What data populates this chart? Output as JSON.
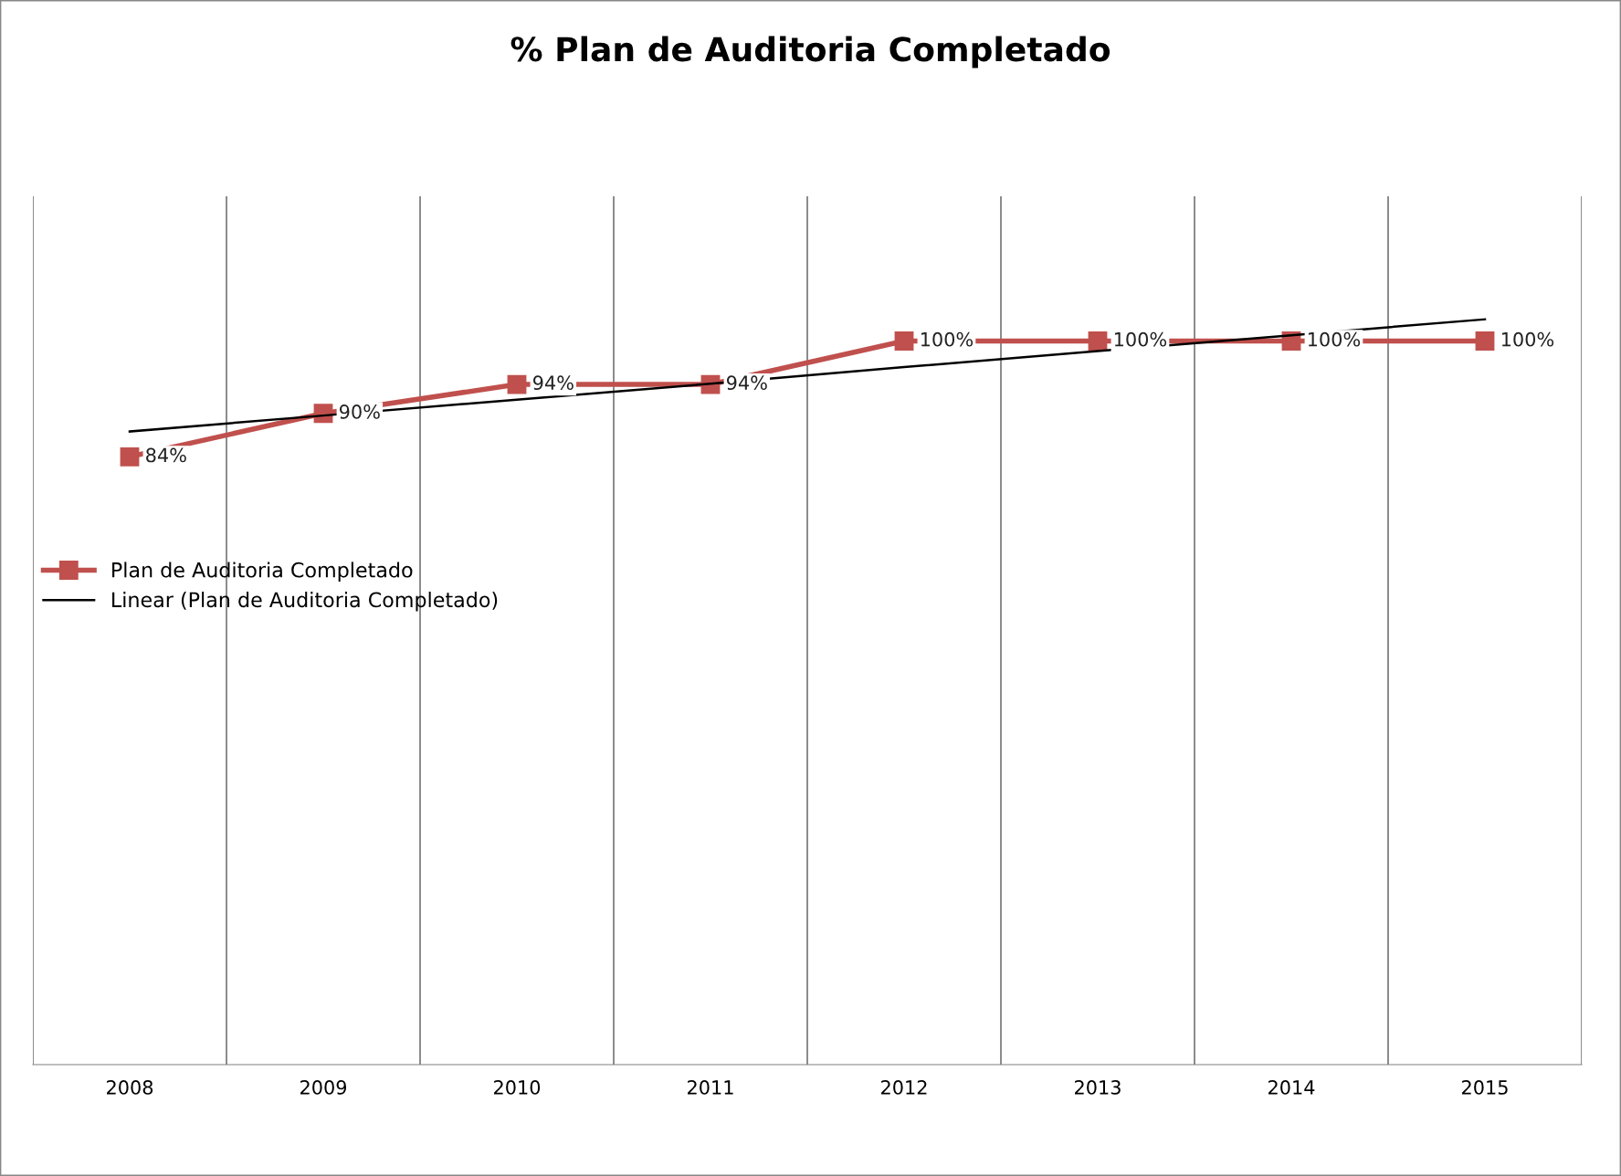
{
  "chart_data": {
    "type": "line",
    "title": "% Plan de Auditoria Completado",
    "categories": [
      "2008",
      "2009",
      "2010",
      "2011",
      "2012",
      "2013",
      "2014",
      "2015"
    ],
    "series": [
      {
        "name": "Plan de Auditoria Completado",
        "color": "#c0504d",
        "values": [
          84,
          90,
          94,
          94,
          100,
          100,
          100,
          100
        ],
        "marker": "square",
        "value_labels": [
          "84%",
          "90%",
          "94%",
          "94%",
          "100%",
          "100%",
          "100%",
          "100%"
        ]
      },
      {
        "name": "Linear (Plan de Auditoria Completado)",
        "color": "#000000",
        "values": [
          87.5,
          89.7,
          91.9,
          94.1,
          96.4,
          98.6,
          100.8,
          103
        ],
        "marker": "none"
      }
    ],
    "ylim": [
      0,
      120
    ],
    "tick_labels": "x",
    "grid": "x",
    "legend": "left",
    "line_style": "solid"
  }
}
